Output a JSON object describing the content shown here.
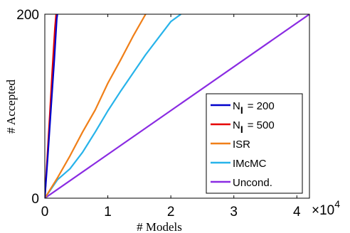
{
  "chart_data": {
    "type": "line",
    "xlabel": "# Models",
    "ylabel": "# Accepted",
    "x_multiplier": {
      "base": "×10",
      "exponent": "4"
    },
    "xlim": [
      0,
      42000
    ],
    "ylim": [
      0,
      200
    ],
    "x_ticks": [
      {
        "value": 0,
        "label": "0"
      },
      {
        "value": 10000,
        "label": "1"
      },
      {
        "value": 20000,
        "label": "2"
      },
      {
        "value": 30000,
        "label": "3"
      },
      {
        "value": 40000,
        "label": "4"
      }
    ],
    "y_ticks": [
      {
        "value": 0,
        "label": "0"
      },
      {
        "value": 200,
        "label": "200"
      }
    ],
    "legend_position": "bottom-right",
    "series": [
      {
        "name": "N",
        "subscript": "I",
        "suffix": "= 200",
        "color": "#0000cc",
        "x": [
          0,
          500,
          1000,
          1500,
          1900,
          2000
        ],
        "y": [
          0,
          48,
          100,
          150,
          195,
          200
        ]
      },
      {
        "name": "N",
        "subscript": "I",
        "suffix": "= 500",
        "color": "#e60000",
        "x": [
          0,
          400,
          800,
          1200,
          1600,
          1800
        ],
        "y": [
          0,
          45,
          92,
          140,
          185,
          200
        ]
      },
      {
        "name": "ISR",
        "color": "#f07f18",
        "x": [
          0,
          2000,
          4000,
          6000,
          8000,
          10000,
          12000,
          14000,
          16000
        ],
        "y": [
          0,
          22,
          46,
          72,
          96,
          125,
          150,
          176,
          200
        ]
      },
      {
        "name": "IMcMC",
        "color": "#27b3ea",
        "x": [
          0,
          2000,
          4000,
          6000,
          8000,
          10000,
          12000,
          14000,
          16000,
          18000,
          20000,
          21600
        ],
        "y": [
          0,
          20,
          32,
          50,
          72,
          95,
          116,
          136,
          156,
          174,
          192,
          200
        ]
      },
      {
        "name": "Uncond.",
        "color": "#8a2be2",
        "x": [
          0,
          42000
        ],
        "y": [
          0,
          200
        ]
      }
    ]
  }
}
